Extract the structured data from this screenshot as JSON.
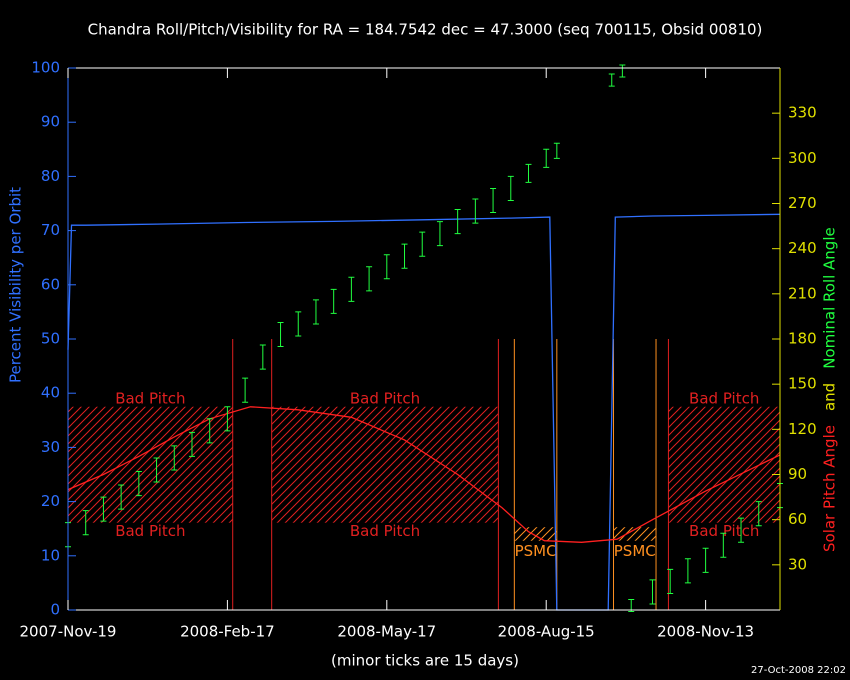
{
  "chart_data": {
    "type": "line",
    "title": "Chandra Roll/Pitch/Visibility for RA = 184.7542 dec = 47.3000 (seq 700115, Obsid 00810)",
    "ylabel": "Percent Visibility per Orbit",
    "y2label_parts": [
      {
        "text": "Solar Pitch Angle",
        "color": "#ff2020"
      },
      {
        "text": "and",
        "color": "#e0e000"
      },
      {
        "text": "Nominal Roll Angle",
        "color": "#20ff40"
      }
    ],
    "xlabel": "(minor ticks are 15 days)",
    "timestamp": "27-Oct-2008 22:02",
    "xlim": [
      0,
      402
    ],
    "xticks": [
      {
        "value": 0,
        "label": "2007-Nov-19"
      },
      {
        "value": 90,
        "label": "2008-Feb-17"
      },
      {
        "value": 180,
        "label": "2008-May-17"
      },
      {
        "value": 270,
        "label": "2008-Aug-15"
      },
      {
        "value": 360,
        "label": "2008-Nov-13"
      }
    ],
    "ylim": [
      0,
      100
    ],
    "yticks": [
      0,
      10,
      20,
      30,
      40,
      50,
      60,
      70,
      80,
      90,
      100
    ],
    "y2lim": [
      0,
      360
    ],
    "y2ticks": [
      30,
      60,
      90,
      120,
      150,
      180,
      210,
      240,
      270,
      300,
      330
    ],
    "regions": [
      {
        "label": "Bad Pitch",
        "x": [
          0,
          93
        ],
        "y2": [
          58,
          135
        ],
        "color": "#e02020"
      },
      {
        "label": "Bad Pitch",
        "x": [
          115,
          243
        ],
        "y2": [
          58,
          135
        ],
        "color": "#e02020"
      },
      {
        "label": "Bad Pitch",
        "x": [
          339,
          402
        ],
        "y2": [
          58,
          135
        ],
        "color": "#e02020"
      },
      {
        "label": "PSMC",
        "x": [
          252,
          276
        ],
        "y2": [
          46,
          55
        ],
        "color": "#ff9020"
      },
      {
        "label": "PSMC",
        "x": [
          308,
          332
        ],
        "y2": [
          46,
          55
        ],
        "color": "#ff9020"
      }
    ],
    "series": [
      {
        "name": "Visibility",
        "color": "#3070ff",
        "kind": "line",
        "x": [
          0,
          2,
          10,
          50,
          100,
          150,
          200,
          250,
          272,
          276,
          305,
          309,
          330,
          360,
          402
        ],
        "values": [
          48,
          71,
          71,
          71.2,
          71.5,
          71.7,
          72,
          72.3,
          72.5,
          0,
          0,
          72.5,
          72.7,
          72.8,
          73
        ]
      },
      {
        "name": "Solar Pitch",
        "color": "#ff2020",
        "kind": "line",
        "axis": "y2",
        "x": [
          0,
          20,
          40,
          60,
          80,
          103,
          130,
          160,
          190,
          220,
          245,
          260,
          269,
          290,
          310,
          330,
          360,
          402
        ],
        "values": [
          80,
          90,
          102,
          115,
          127,
          135,
          133,
          128,
          113,
          90,
          68,
          52,
          46,
          45,
          47,
          60,
          79,
          103
        ]
      },
      {
        "name": "Roll",
        "color": "#20ff40",
        "kind": "errorbar",
        "axis": "y2",
        "x": [
          0,
          10,
          20,
          30,
          40,
          50,
          60,
          70,
          80,
          90,
          100,
          110,
          120,
          130,
          140,
          150,
          160,
          170,
          180,
          190,
          200,
          210,
          220,
          230,
          240,
          250,
          260,
          270,
          276,
          307,
          313,
          318,
          330,
          340,
          350,
          360,
          370,
          380,
          390,
          402
        ],
        "values": [
          50,
          58,
          67,
          75,
          84,
          93,
          101,
          110,
          119,
          127,
          146,
          168,
          183,
          190,
          198,
          205,
          213,
          220,
          228,
          235,
          243,
          250,
          258,
          265,
          272,
          280,
          290,
          300,
          305,
          352,
          358,
          3,
          12,
          19,
          26,
          33,
          43,
          53,
          64,
          76
        ],
        "errors": [
          8,
          8,
          8,
          8,
          8,
          8,
          8,
          8,
          8,
          8,
          8,
          8,
          8,
          8,
          8,
          8,
          8,
          8,
          8,
          8,
          8,
          8,
          8,
          8,
          8,
          8,
          6,
          6,
          5,
          4,
          4,
          4,
          8,
          8,
          8,
          8,
          8,
          8,
          8,
          8
        ]
      }
    ]
  }
}
